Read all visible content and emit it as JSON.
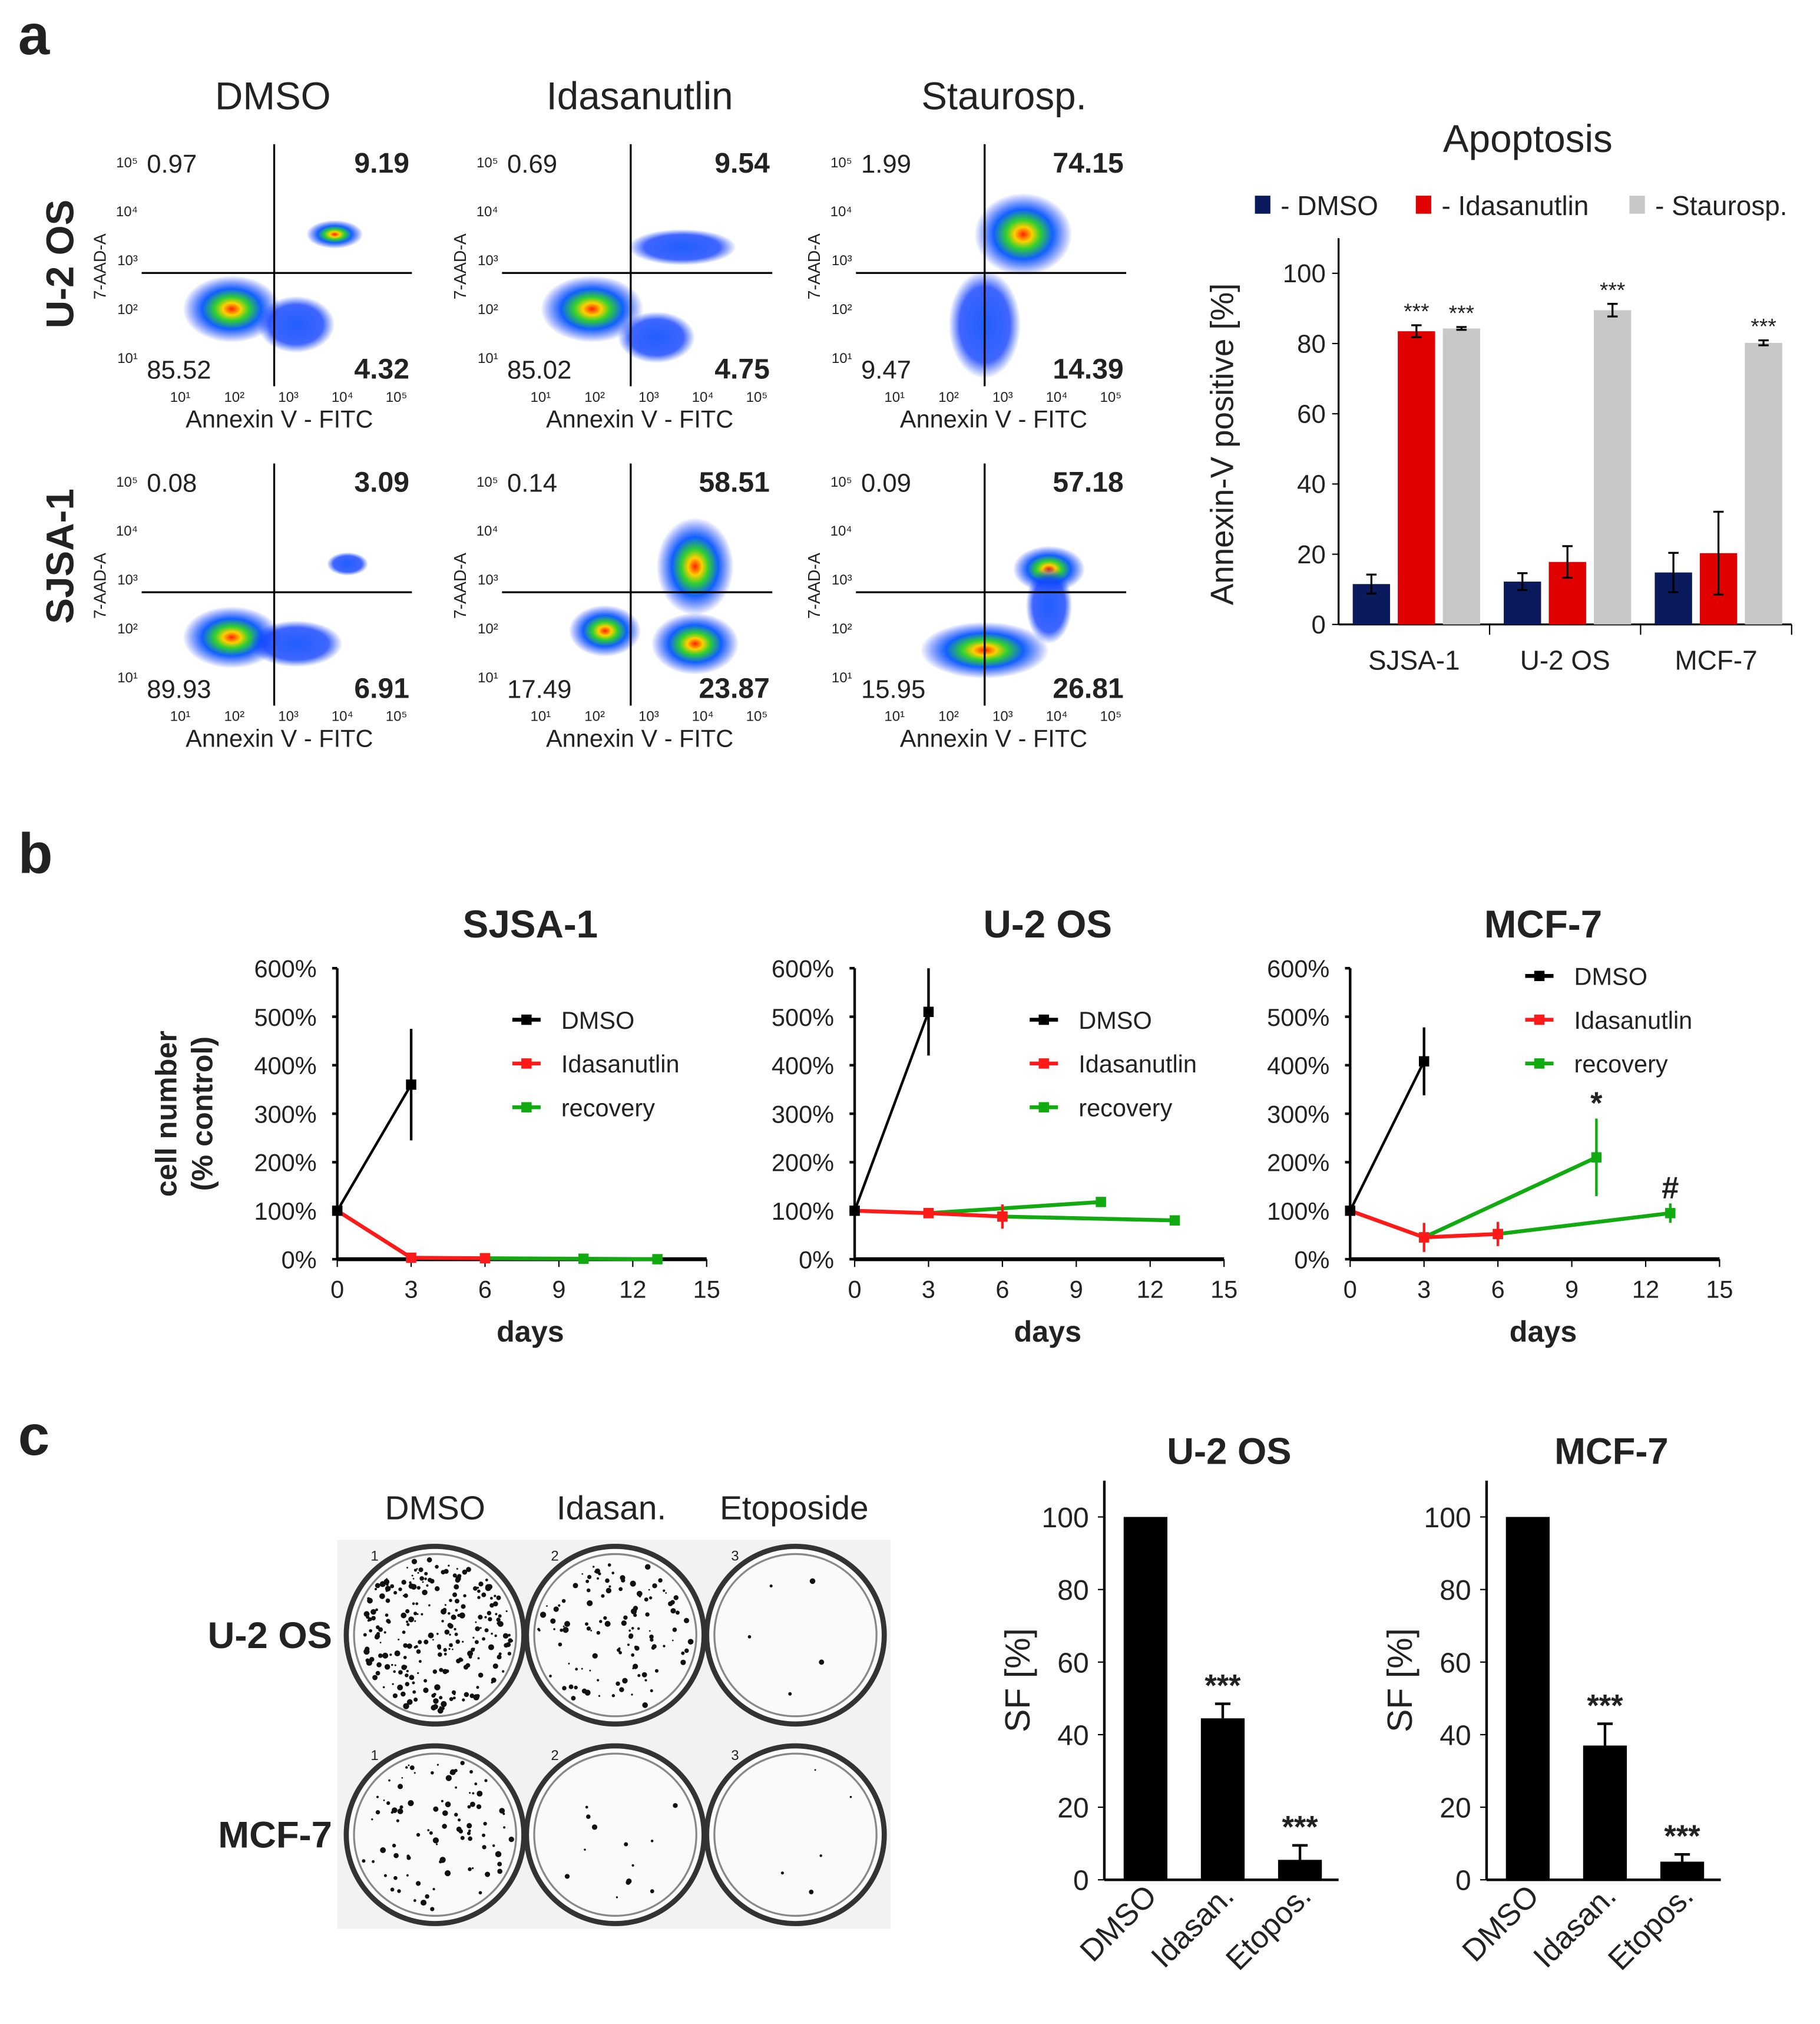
{
  "panel_labels": [
    "a",
    "b",
    "c"
  ],
  "chart_data": [
    {
      "type": "scatter",
      "id": "flow",
      "column_titles": [
        "DMSO",
        "Idasanutlin",
        "Staurosp."
      ],
      "row_titles": [
        "U-2 OS",
        "SJSA-1"
      ],
      "xlabel": "Annexin V - FITC",
      "ylabel": "7-AAD-A",
      "x_ticks": [
        "10¹",
        "10²",
        "10³",
        "10⁴",
        "10⁵"
      ],
      "y_ticks": [
        "10⁵",
        "10⁴",
        "10³",
        "10²",
        "10¹"
      ],
      "quadrants": [
        [
          {
            "ul": "0.97",
            "ur": "9.19",
            "ll": "85.52",
            "lr": "4.32"
          },
          {
            "ul": "0.69",
            "ur": "9.54",
            "ll": "85.02",
            "lr": "4.75"
          },
          {
            "ul": "1.99",
            "ur": "74.15",
            "ll": "9.47",
            "lr": "14.39"
          }
        ],
        [
          {
            "ul": "0.08",
            "ur": "3.09",
            "ll": "89.93",
            "lr": "6.91"
          },
          {
            "ul": "0.14",
            "ur": "58.51",
            "ll": "17.49",
            "lr": "23.87"
          },
          {
            "ul": "0.09",
            "ur": "57.18",
            "ll": "15.95",
            "lr": "26.81"
          }
        ]
      ]
    },
    {
      "type": "bar",
      "id": "apoptosis",
      "title": "Apoptosis",
      "ylabel": "Annexin-V positive [%]",
      "ylim": [
        0,
        110
      ],
      "y_ticks": [
        0,
        20,
        40,
        60,
        80,
        100
      ],
      "categories": [
        "SJSA-1",
        "U-2 OS",
        "MCF-7"
      ],
      "series": [
        {
          "name": "- DMSO",
          "color": "#0a1a5c",
          "values": [
            11.5,
            12.2,
            14.8
          ],
          "errors": [
            2.7,
            2.4,
            5.6
          ],
          "sig": [
            "",
            "",
            ""
          ]
        },
        {
          "name": "- Idasanutlin",
          "color": "#e00000",
          "values": [
            83.5,
            17.8,
            20.3
          ],
          "errors": [
            1.7,
            4.5,
            11.8
          ],
          "sig": [
            "***",
            "",
            ""
          ]
        },
        {
          "name": "- Staurosp.",
          "color": "#c8c8c8",
          "values": [
            84.3,
            89.5,
            80.2
          ],
          "errors": [
            0.4,
            1.8,
            0.7
          ],
          "sig": [
            "***",
            "***",
            "***"
          ]
        }
      ]
    },
    {
      "type": "line",
      "id": "growth",
      "ylabel": "cell number\n(% control)",
      "ylabel_lines": [
        "cell number",
        "(% control)"
      ],
      "xlabel": "days",
      "xlim": [
        0,
        15
      ],
      "ylim": [
        0,
        600
      ],
      "x_ticks": [
        0,
        3,
        6,
        9,
        12,
        15
      ],
      "y_ticks": [
        "0%",
        "100%",
        "200%",
        "300%",
        "400%",
        "500%",
        "600%"
      ],
      "legend": [
        {
          "name": "DMSO",
          "color": "#000000"
        },
        {
          "name": "Idasanutlin",
          "color": "#ff1a1a"
        },
        {
          "name": "recovery",
          "color": "#11aa11"
        }
      ],
      "panels": [
        {
          "title": "SJSA-1",
          "legend_placement": "middle-right",
          "lines": [
            {
              "series": "DMSO",
              "points": [
                [
                  0,
                  100,
                  0
                ],
                [
                  3,
                  360,
                  115
                ]
              ]
            },
            {
              "series": "Idasanutlin",
              "points": [
                [
                  0,
                  100,
                  0
                ],
                [
                  3,
                  3,
                  0
                ],
                [
                  6,
                  2,
                  0
                ]
              ]
            },
            {
              "series": "recovery",
              "points": [
                [
                  6,
                  2,
                  0
                ],
                [
                  10,
                  1,
                  0
                ],
                [
                  13,
                  0,
                  0
                ]
              ]
            }
          ],
          "annotations": []
        },
        {
          "title": "U-2 OS",
          "legend_placement": "middle-right",
          "lines": [
            {
              "series": "DMSO",
              "points": [
                [
                  0,
                  100,
                  0
                ],
                [
                  3,
                  510,
                  90
                ]
              ]
            },
            {
              "series": "Idasanutlin",
              "points": [
                [
                  0,
                  100,
                  0
                ],
                [
                  3,
                  95,
                  10
                ],
                [
                  6,
                  88,
                  25
                ]
              ]
            },
            {
              "series": "recovery",
              "points": [
                [
                  3,
                  95,
                  0
                ],
                [
                  10,
                  118,
                  5
                ]
              ]
            },
            {
              "series": "recovery",
              "points": [
                [
                  6,
                  88,
                  0
                ],
                [
                  13,
                  80,
                  4
                ]
              ]
            }
          ],
          "annotations": []
        },
        {
          "title": "MCF-7",
          "legend_placement": "top-right",
          "lines": [
            {
              "series": "DMSO",
              "points": [
                [
                  0,
                  100,
                  0
                ],
                [
                  3,
                  408,
                  70
                ]
              ]
            },
            {
              "series": "Idasanutlin",
              "points": [
                [
                  0,
                  100,
                  0
                ],
                [
                  3,
                  45,
                  30
                ],
                [
                  6,
                  52,
                  25
                ]
              ]
            },
            {
              "series": "recovery",
              "points": [
                [
                  3,
                  45,
                  0
                ],
                [
                  10,
                  210,
                  80
                ]
              ]
            },
            {
              "series": "recovery",
              "points": [
                [
                  6,
                  52,
                  0
                ],
                [
                  13,
                  95,
                  20
                ]
              ]
            }
          ],
          "annotations": [
            {
              "x": 10,
              "y": 300,
              "text": "*"
            },
            {
              "x": 13,
              "y": 125,
              "text": "#"
            }
          ]
        }
      ]
    },
    {
      "type": "bar",
      "id": "clonogenic",
      "ylabel": "SF [%]",
      "ylim": [
        0,
        110
      ],
      "y_ticks": [
        0,
        20,
        40,
        60,
        80,
        100
      ],
      "categories": [
        "DMSO",
        "Idasan.",
        "Etopos."
      ],
      "panels": [
        {
          "title": "U-2 OS",
          "values": [
            100,
            44.5,
            5.5
          ],
          "errors": [
            0,
            4,
            4
          ],
          "sig": [
            "",
            "***",
            "***"
          ]
        },
        {
          "title": "MCF-7",
          "values": [
            100,
            37,
            5
          ],
          "errors": [
            0,
            6,
            2
          ],
          "sig": [
            "",
            "***",
            "***"
          ]
        }
      ]
    }
  ],
  "plates": {
    "column_titles": [
      "DMSO",
      "Idasan.",
      "Etoposide"
    ],
    "row_titles": [
      "U-2 OS",
      "MCF-7"
    ],
    "well_numbers": [
      "1",
      "2",
      "3"
    ],
    "colony_density": [
      [
        1.0,
        0.45,
        0.02
      ],
      [
        0.35,
        0.05,
        0.02
      ]
    ]
  }
}
